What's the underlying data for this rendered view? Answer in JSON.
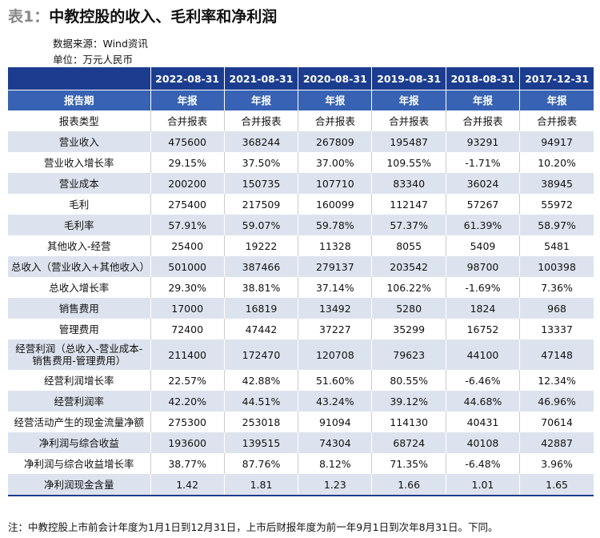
{
  "header": {
    "label": "表1：",
    "title": "中教控股的收入、毛利率和净利润",
    "source": "数据来源：Wind资讯",
    "unit": "单位：万元人民币"
  },
  "table": {
    "columns": [
      "2022-08-31",
      "2021-08-31",
      "2020-08-31",
      "2019-08-31",
      "2018-08-31",
      "2017-12-31"
    ],
    "period_row": {
      "label": "报告期",
      "values": [
        "年报",
        "年报",
        "年报",
        "年报",
        "年报",
        "年报"
      ]
    },
    "rows": [
      {
        "label": "报表类型",
        "values": [
          "合并报表",
          "合并报表",
          "合并报表",
          "合并报表",
          "合并报表",
          "合并报表"
        ]
      },
      {
        "label": "营业收入",
        "values": [
          "475600",
          "368244",
          "267809",
          "195487",
          "93291",
          "94917"
        ]
      },
      {
        "label": "营业收入增长率",
        "values": [
          "29.15%",
          "37.50%",
          "37.00%",
          "109.55%",
          "-1.71%",
          "10.20%"
        ]
      },
      {
        "label": "营业成本",
        "values": [
          "200200",
          "150735",
          "107710",
          "83340",
          "36024",
          "38945"
        ]
      },
      {
        "label": "毛利",
        "values": [
          "275400",
          "217509",
          "160099",
          "112147",
          "57267",
          "55972"
        ]
      },
      {
        "label": "毛利率",
        "values": [
          "57.91%",
          "59.07%",
          "59.78%",
          "57.37%",
          "61.39%",
          "58.97%"
        ]
      },
      {
        "label": "其他收入-经营",
        "values": [
          "25400",
          "19222",
          "11328",
          "8055",
          "5409",
          "5481"
        ]
      },
      {
        "label": "总收入（营业收入+其他收入）",
        "values": [
          "501000",
          "387466",
          "279137",
          "203542",
          "98700",
          "100398"
        ]
      },
      {
        "label": "总收入增长率",
        "values": [
          "29.30%",
          "38.81%",
          "37.14%",
          "106.22%",
          "-1.69%",
          "7.36%"
        ]
      },
      {
        "label": "销售费用",
        "values": [
          "17000",
          "16819",
          "13492",
          "5280",
          "1824",
          "968"
        ]
      },
      {
        "label": "管理费用",
        "values": [
          "72400",
          "47442",
          "37227",
          "35299",
          "16752",
          "13337"
        ]
      },
      {
        "label": "经营利润（总收入-营业成本-销售费用-管理费用）",
        "values": [
          "211400",
          "172470",
          "120708",
          "79623",
          "44100",
          "47148"
        ]
      },
      {
        "label": "经营利润增长率",
        "values": [
          "22.57%",
          "42.88%",
          "51.60%",
          "80.55%",
          "-6.46%",
          "12.34%"
        ]
      },
      {
        "label": "经营利润率",
        "values": [
          "42.20%",
          "44.51%",
          "43.24%",
          "39.12%",
          "44.68%",
          "46.96%"
        ]
      },
      {
        "label": "经营活动产生的现金流量净额",
        "values": [
          "275300",
          "253018",
          "91094",
          "114130",
          "40431",
          "70614"
        ]
      },
      {
        "label": "净利润与综合收益",
        "values": [
          "193600",
          "139515",
          "74304",
          "68724",
          "40108",
          "42887"
        ]
      },
      {
        "label": "净利润与综合收益增长率",
        "values": [
          "38.77%",
          "87.76%",
          "8.12%",
          "71.35%",
          "-6.48%",
          "3.96%"
        ]
      },
      {
        "label": "净利润现金含量",
        "values": [
          "1.42",
          "1.81",
          "1.23",
          "1.66",
          "1.01",
          "1.65"
        ]
      }
    ]
  },
  "footnote": "注：中教控股上市前会计年度为1月1日到12月31日，上市后财报年度为前一年9月1日到次年8月31日。下同。"
}
